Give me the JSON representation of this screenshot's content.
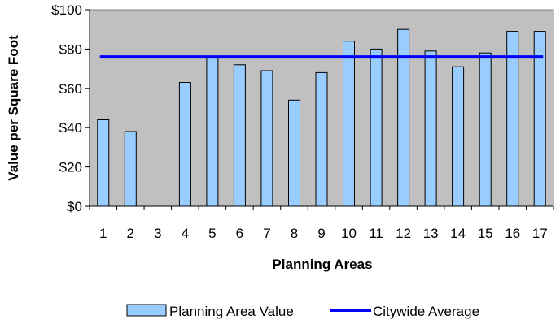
{
  "chart_data": {
    "type": "bar",
    "xlabel": "Planning Areas",
    "ylabel": "Value per Square Foot",
    "categories": [
      "1",
      "2",
      "3",
      "4",
      "5",
      "6",
      "7",
      "8",
      "9",
      "10",
      "11",
      "12",
      "13",
      "14",
      "15",
      "16",
      "17"
    ],
    "series": [
      {
        "name": "Planning Area Value",
        "type": "bar",
        "values": [
          44,
          38,
          0,
          63,
          76,
          72,
          69,
          54,
          68,
          84,
          80,
          90,
          79,
          71,
          78,
          89,
          89
        ]
      },
      {
        "name": "Citywide Average",
        "type": "line",
        "value": 76
      }
    ],
    "ylim": [
      0,
      100
    ],
    "yticks": [
      0,
      20,
      40,
      60,
      80,
      100
    ],
    "ytick_labels": [
      "$0",
      "$20",
      "$40",
      "$60",
      "$80",
      "$100"
    ],
    "grid": false,
    "legend": "bottom",
    "colors": {
      "plot_background": "#c0c0c0",
      "bar_fill": "#99ccff",
      "bar_stroke": "#000000",
      "average_line": "#0000ff"
    }
  }
}
